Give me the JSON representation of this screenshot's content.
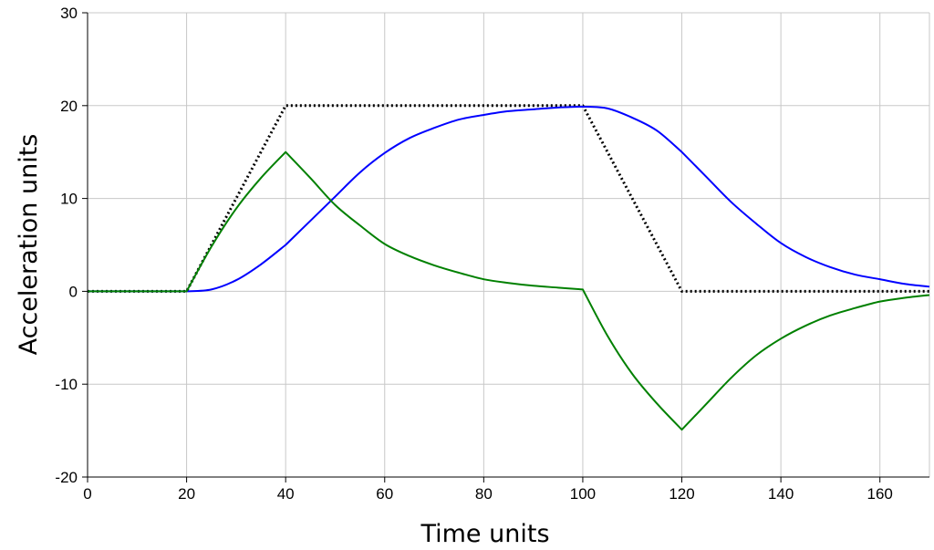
{
  "chart_data": {
    "type": "line",
    "title": "",
    "xlabel": "Time units",
    "ylabel": "Acceleration units",
    "xlim": [
      0,
      170
    ],
    "ylim": [
      -20,
      30
    ],
    "xticks": [
      0,
      20,
      40,
      60,
      80,
      100,
      120,
      140,
      160
    ],
    "yticks": [
      -20,
      -10,
      0,
      10,
      20,
      30
    ],
    "grid": true,
    "legend": "none",
    "series": [
      {
        "color": "#000000",
        "style": "dotted",
        "x": [
          0,
          20,
          40,
          100,
          120,
          170
        ],
        "y": [
          0,
          0,
          20,
          20,
          0,
          0
        ]
      },
      {
        "color": "#0000ff",
        "style": "solid",
        "x": [
          0,
          20,
          25,
          30,
          35,
          40,
          45,
          50,
          55,
          60,
          65,
          70,
          75,
          80,
          85,
          90,
          95,
          100,
          105,
          110,
          115,
          120,
          125,
          130,
          135,
          140,
          145,
          150,
          155,
          160,
          165,
          170
        ],
        "y": [
          0,
          0,
          0.2,
          1.2,
          2.9,
          5.0,
          7.6,
          10.2,
          12.8,
          14.9,
          16.5,
          17.6,
          18.5,
          19.0,
          19.4,
          19.6,
          19.8,
          19.9,
          19.7,
          18.7,
          17.3,
          15.0,
          12.3,
          9.6,
          7.3,
          5.2,
          3.7,
          2.6,
          1.8,
          1.3,
          0.8,
          0.5
        ]
      },
      {
        "color": "#008000",
        "style": "solid",
        "x": [
          0,
          20,
          25,
          30,
          35,
          40,
          45,
          50,
          55,
          60,
          65,
          70,
          75,
          80,
          85,
          90,
          95,
          100,
          105,
          110,
          115,
          120,
          125,
          130,
          135,
          140,
          145,
          150,
          155,
          160,
          165,
          170
        ],
        "y": [
          0,
          0,
          4.8,
          8.9,
          12.2,
          15.0,
          12.2,
          9.3,
          7.1,
          5.1,
          3.8,
          2.8,
          2.0,
          1.3,
          0.9,
          0.6,
          0.4,
          0.2,
          -4.8,
          -8.9,
          -12.1,
          -14.9,
          -12.1,
          -9.3,
          -6.9,
          -5.1,
          -3.7,
          -2.6,
          -1.8,
          -1.1,
          -0.7,
          -0.4
        ]
      }
    ]
  }
}
